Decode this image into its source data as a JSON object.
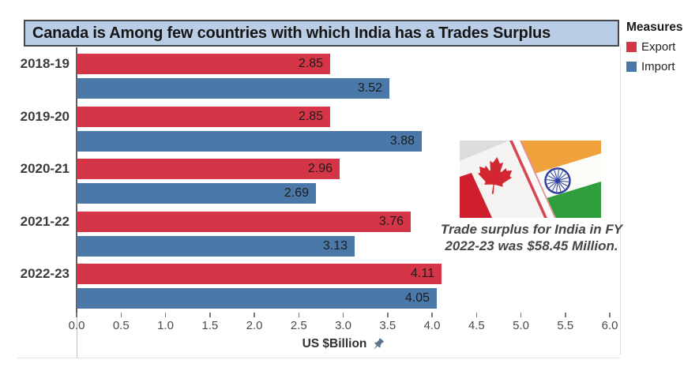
{
  "title": "Canada is Among few countries with which India has a Trades Surplus",
  "legend": {
    "title": "Measures",
    "items": [
      {
        "label": "Export",
        "color": "#d43547"
      },
      {
        "label": "Import",
        "color": "#4a78a8"
      }
    ]
  },
  "chart_data": {
    "type": "bar",
    "orientation": "horizontal",
    "title": "Canada is Among few countries with which India has a Trades Surplus",
    "categories": [
      "2018-19",
      "2019-20",
      "2020-21",
      "2021-22",
      "2022-23"
    ],
    "series": [
      {
        "name": "Export",
        "color": "#d43547",
        "values": [
          2.85,
          2.85,
          2.96,
          3.76,
          4.11
        ]
      },
      {
        "name": "Import",
        "color": "#4a78a8",
        "values": [
          3.52,
          3.88,
          2.69,
          3.13,
          4.05
        ]
      }
    ],
    "xlabel": "US $Billion",
    "xlim": [
      0,
      6
    ],
    "xticks": [
      "0.0",
      "0.5",
      "1.0",
      "1.5",
      "2.0",
      "2.5",
      "3.0",
      "3.5",
      "4.0",
      "4.5",
      "5.0",
      "5.5",
      "6.0"
    ],
    "value_labels": "inside-end",
    "grid": false,
    "legend_position": "top-right"
  },
  "annotation": {
    "line1": "Trade surplus for India in FY",
    "line2": "2022-23 was $58.45 Million."
  },
  "flags": {
    "left": "canada-flag",
    "right": "india-flag"
  }
}
